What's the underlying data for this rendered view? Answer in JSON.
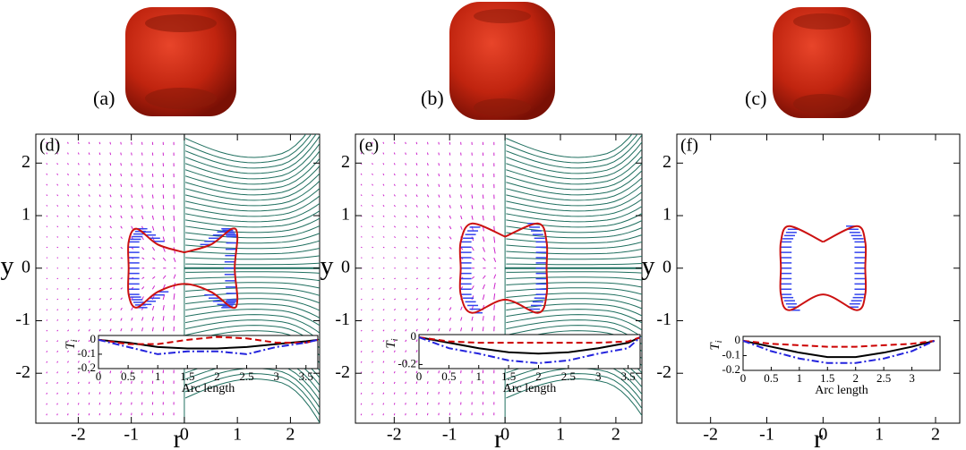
{
  "renders": [
    {
      "label": "(a)"
    },
    {
      "label": "(b)"
    },
    {
      "label": "(c)"
    }
  ],
  "chart_data": [
    {
      "type": "vector",
      "label": "(d)",
      "xlabel": "r",
      "ylabel": "y",
      "xlim": [
        -2.8,
        2.55
      ],
      "ylim": [
        -2.95,
        2.55
      ],
      "xticks": [
        -2,
        -1,
        0,
        1,
        2
      ],
      "yticks": [
        -2,
        -1,
        0,
        1,
        2
      ],
      "field": true,
      "outline_color": "#cc1111",
      "outline": {
        "x": [
          0,
          0.5,
          0.9,
          1.0,
          0.95,
          1.0,
          0.9,
          0.5,
          0,
          -0.5,
          -0.9,
          -1.05,
          -1.05,
          -1.05,
          -0.9,
          -0.5,
          0
        ],
        "y": [
          0.3,
          0.45,
          0.75,
          0.6,
          0,
          -0.6,
          -0.75,
          -0.45,
          -0.3,
          -0.45,
          -0.75,
          -0.5,
          0,
          0.5,
          0.75,
          0.45,
          0.3
        ]
      },
      "inset": {
        "type": "line",
        "xlabel": "Arc length",
        "ylabel": "T",
        "ylabel_subscript": "i",
        "xlim": [
          0,
          3.7
        ],
        "ylim": [
          -0.2,
          0.03
        ],
        "xticks": [
          0,
          0.5,
          1,
          1.5,
          2,
          2.5,
          3,
          3.5
        ],
        "yticks": [
          0,
          -0.1,
          -0.2
        ],
        "x": [
          0,
          0.5,
          1,
          1.5,
          2,
          2.5,
          3,
          3.5,
          3.7
        ],
        "series": [
          {
            "color": "#000000",
            "style": "solid",
            "values": [
              0,
              -0.02,
              -0.05,
              -0.06,
              -0.06,
              -0.05,
              -0.03,
              -0.01,
              0
            ]
          },
          {
            "color": "#cc0000",
            "style": "dashed",
            "values": [
              0,
              -0.03,
              -0.03,
              0,
              0.02,
              0.01,
              -0.02,
              -0.02,
              0
            ]
          },
          {
            "color": "#2222dd",
            "style": "dashdot",
            "values": [
              0,
              -0.05,
              -0.1,
              -0.08,
              -0.08,
              -0.1,
              -0.05,
              -0.02,
              0
            ]
          }
        ]
      }
    },
    {
      "type": "vector",
      "label": "(e)",
      "xlabel": "r",
      "ylabel": "y",
      "xlim": [
        -2.7,
        2.47
      ],
      "ylim": [
        -2.95,
        2.55
      ],
      "xticks": [
        -2,
        -1,
        0,
        1,
        2
      ],
      "yticks": [
        -2,
        -1,
        0,
        1,
        2
      ],
      "field": true,
      "outline_color": "#cc1111",
      "outline": {
        "x": [
          0,
          0.6,
          0.75,
          0.75,
          0.75,
          0.6,
          0,
          -0.6,
          -0.8,
          -0.8,
          -0.8,
          -0.6,
          0
        ],
        "y": [
          0.6,
          0.85,
          0.5,
          0,
          -0.5,
          -0.85,
          -0.6,
          -0.85,
          -0.5,
          0,
          0.5,
          0.85,
          0.6
        ]
      },
      "inset": {
        "type": "line",
        "xlabel": "Arc length",
        "ylabel": "T",
        "ylabel_subscript": "i",
        "xlim": [
          0,
          3.7
        ],
        "ylim": [
          -0.23,
          0.02
        ],
        "xticks": [
          0,
          0.5,
          1,
          1.5,
          2,
          2.5,
          3,
          3.5
        ],
        "yticks": [
          0,
          -0.2
        ],
        "x": [
          0,
          0.5,
          1,
          1.5,
          2,
          2.5,
          3,
          3.5,
          3.7
        ],
        "series": [
          {
            "color": "#000000",
            "style": "solid",
            "values": [
              0,
              -0.04,
              -0.08,
              -0.11,
              -0.12,
              -0.11,
              -0.08,
              -0.04,
              0
            ]
          },
          {
            "color": "#cc0000",
            "style": "dashed",
            "values": [
              0,
              -0.03,
              -0.04,
              -0.04,
              -0.04,
              -0.04,
              -0.04,
              -0.03,
              0
            ]
          },
          {
            "color": "#2222dd",
            "style": "dashdot",
            "values": [
              0,
              -0.08,
              -0.12,
              -0.17,
              -0.19,
              -0.17,
              -0.12,
              -0.08,
              0
            ]
          }
        ]
      }
    },
    {
      "type": "vector",
      "label": "(f)",
      "xlabel": "r",
      "ylabel": "y",
      "xlim": [
        -2.6,
        2.43
      ],
      "ylim": [
        -2.95,
        2.55
      ],
      "xticks": [
        -2,
        -1,
        0,
        1,
        2
      ],
      "yticks": [
        -2,
        -1,
        0,
        1,
        2
      ],
      "field": false,
      "outline_color": "#cc1111",
      "outline": {
        "x": [
          0,
          0.6,
          0.75,
          0.75,
          0.75,
          0.6,
          0,
          -0.6,
          -0.75,
          -0.75,
          -0.75,
          -0.6,
          0
        ],
        "y": [
          0.5,
          0.8,
          0.5,
          0,
          -0.5,
          -0.8,
          -0.5,
          -0.8,
          -0.5,
          0,
          0.5,
          0.8,
          0.5
        ]
      },
      "inset": {
        "type": "line",
        "xlabel": "Arc length",
        "ylabel": "T",
        "ylabel_subscript": "i",
        "xlim": [
          0,
          3.5
        ],
        "ylim": [
          -0.2,
          0.03
        ],
        "xticks": [
          0,
          0.5,
          1,
          1.5,
          2,
          2.5,
          3
        ],
        "yticks": [
          0,
          -0.1,
          -0.2
        ],
        "x": [
          0,
          0.5,
          1,
          1.5,
          2,
          2.5,
          3,
          3.4
        ],
        "series": [
          {
            "color": "#000000",
            "style": "solid",
            "values": [
              0,
              -0.04,
              -0.08,
              -0.11,
              -0.11,
              -0.08,
              -0.04,
              0
            ]
          },
          {
            "color": "#cc0000",
            "style": "dashed",
            "values": [
              0,
              -0.02,
              -0.03,
              -0.04,
              -0.04,
              -0.03,
              -0.02,
              0
            ]
          },
          {
            "color": "#2222dd",
            "style": "dashdot",
            "values": [
              0,
              -0.07,
              -0.12,
              -0.15,
              -0.15,
              -0.12,
              -0.07,
              0
            ]
          }
        ]
      }
    }
  ]
}
